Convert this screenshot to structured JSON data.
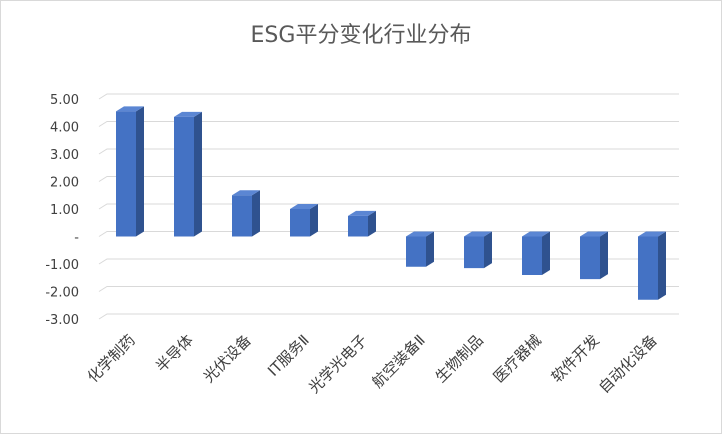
{
  "chart_data": {
    "type": "bar",
    "title": "ESG平分变化行业分布",
    "categories": [
      "化学制药",
      "半导体",
      "光伏设备",
      "IT服务Ⅱ",
      "光学光电子",
      "航空装备Ⅱ",
      "生物制品",
      "医疗器械",
      "软件开发",
      "自动化设备"
    ],
    "values": [
      4.55,
      4.35,
      1.5,
      1.0,
      0.75,
      -1.1,
      -1.15,
      -1.4,
      -1.55,
      -2.3
    ],
    "ylim": [
      -3,
      5
    ],
    "yticks": [
      5,
      4,
      3,
      2,
      1,
      0,
      -1,
      -2,
      -3
    ],
    "ytick_labels": [
      "5.00",
      "4.00",
      "3.00",
      "2.00",
      "1.00",
      "-",
      "-1.00",
      "-2.00",
      "-3.00"
    ],
    "grid": true,
    "colors": {
      "bar_front": "#4472C4",
      "bar_side": "#2F528F",
      "bar_top": "#5B86D3"
    }
  }
}
